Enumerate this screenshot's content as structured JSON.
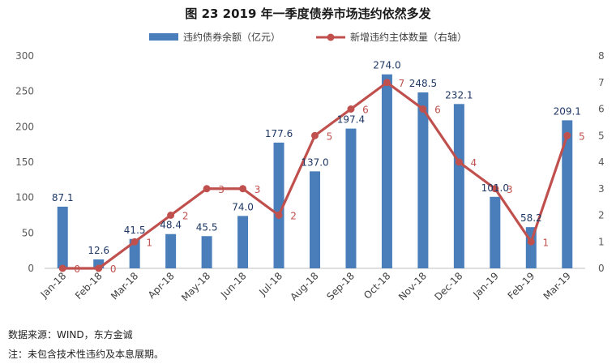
{
  "figure_title": "图 23   2019 年一季度债券市场违约依然多发",
  "chart_data": {
    "type": "bar+line",
    "title": "图 23   2019 年一季度债券市场违约依然多发",
    "categories": [
      "Jan-18",
      "Feb-18",
      "Mar-18",
      "Apr-18",
      "May-18",
      "Jun-18",
      "Jul-18",
      "Aug-18",
      "Sep-18",
      "Oct-18",
      "Nov-18",
      "Dec-18",
      "Jan-19",
      "Feb-19",
      "Mar-19"
    ],
    "series": [
      {
        "name": "违约债券余额（亿元）",
        "type": "bar",
        "axis": "left",
        "color": "#4a7ebb",
        "values": [
          87.1,
          12.6,
          41.5,
          48.4,
          45.5,
          74.0,
          177.6,
          137.0,
          197.4,
          274.0,
          248.5,
          232.1,
          101.0,
          58.2,
          209.1
        ],
        "labels": [
          "87.1",
          "12.6",
          "41.5",
          "48.4",
          "45.5",
          "74.0",
          "177.6",
          "137.0",
          "197.4",
          "274.0",
          "248.5",
          "232.1",
          "101.0",
          "58.2",
          "209.1"
        ]
      },
      {
        "name": "新增违约主体数量（右轴）",
        "type": "line",
        "axis": "right",
        "color": "#c0504d",
        "values": [
          0,
          0,
          1,
          2,
          3,
          3,
          2,
          5,
          6,
          7,
          6,
          4,
          3,
          1,
          5
        ],
        "labels": [
          "0",
          "0",
          "1",
          "2",
          "3",
          "3",
          "2",
          "5",
          "6",
          "7",
          "6",
          "4",
          "3",
          "1",
          "5"
        ]
      }
    ],
    "y_left": {
      "min": 0,
      "max": 300,
      "ticks": [
        0,
        50,
        100,
        150,
        200,
        250,
        300
      ]
    },
    "y_right": {
      "min": 0,
      "max": 8,
      "ticks": [
        0,
        1,
        2,
        3,
        4,
        5,
        6,
        7,
        8
      ]
    },
    "legend_position": "top-center",
    "grid": false
  },
  "source_note": "数据来源：WIND，东方金诚",
  "footnote": "注：未包含技术性违约及本息展期。"
}
